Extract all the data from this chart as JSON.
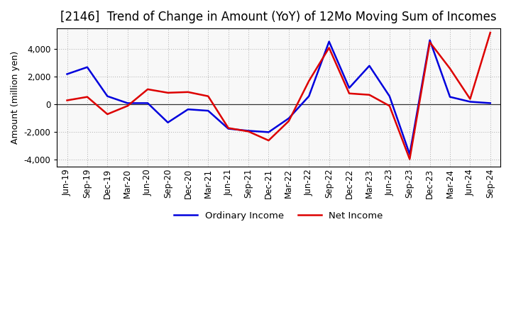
{
  "title": "[2146]  Trend of Change in Amount (YoY) of 12Mo Moving Sum of Incomes",
  "ylabel": "Amount (million yen)",
  "x_labels": [
    "Jun-19",
    "Sep-19",
    "Dec-19",
    "Mar-20",
    "Jun-20",
    "Sep-20",
    "Dec-20",
    "Mar-21",
    "Jun-21",
    "Sep-21",
    "Dec-21",
    "Mar-22",
    "Jun-22",
    "Sep-22",
    "Dec-22",
    "Mar-23",
    "Jun-23",
    "Sep-23",
    "Dec-23",
    "Mar-24",
    "Jun-24",
    "Sep-24"
  ],
  "ordinary_income": [
    2200,
    2700,
    600,
    100,
    100,
    -1300,
    -350,
    -450,
    -1750,
    -1900,
    -2000,
    -1000,
    600,
    4550,
    1200,
    2800,
    600,
    -3600,
    4650,
    550,
    200,
    100
  ],
  "net_income": [
    300,
    550,
    -700,
    -100,
    1100,
    850,
    900,
    600,
    -1700,
    -1950,
    -2600,
    -1200,
    1700,
    4100,
    800,
    700,
    -100,
    -3950,
    4500,
    2600,
    400,
    5200
  ],
  "ordinary_color": "#0000dd",
  "net_color": "#dd0000",
  "ylim": [
    -4500,
    5500
  ],
  "yticks": [
    -4000,
    -2000,
    0,
    2000,
    4000
  ],
  "background_color": "#ffffff",
  "plot_bg_color": "#f8f8f8",
  "grid_color": "#aaaaaa",
  "title_fontsize": 12,
  "label_fontsize": 9,
  "tick_fontsize": 8.5
}
